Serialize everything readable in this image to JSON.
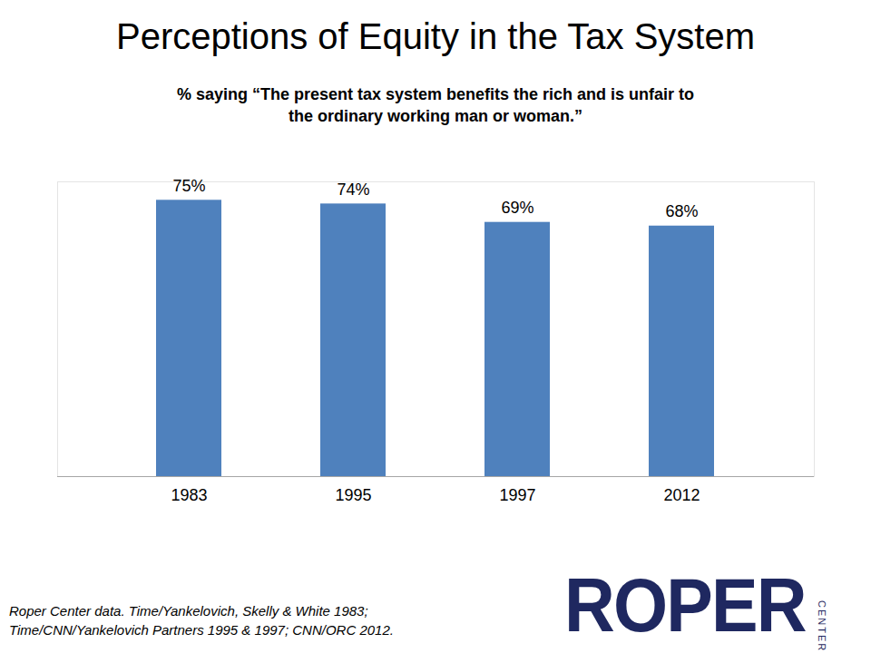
{
  "chart_data": {
    "type": "bar",
    "title": "Perceptions of Equity in the Tax System",
    "subtitle": "% saying “The present tax system benefits the rich and is unfair to the ordinary working man or woman.”",
    "categories": [
      "1983",
      "1995",
      "1997",
      "2012"
    ],
    "values": [
      75,
      74,
      69,
      68
    ],
    "value_labels": [
      "75%",
      "74%",
      "69%",
      "68%"
    ],
    "color": "#4f81bd",
    "ylim": [
      0,
      80
    ],
    "grid": false,
    "data_labels": true,
    "tick_labels": "x",
    "source": [
      "Roper Center data. Time/Yankelovich, Skelly & White  1983;",
      "Time/CNN/Yankelovich Partners 1995 & 1997; CNN/ORC 2012."
    ],
    "logo": {
      "text": "ROPER",
      "subtext": "CENTER"
    }
  }
}
